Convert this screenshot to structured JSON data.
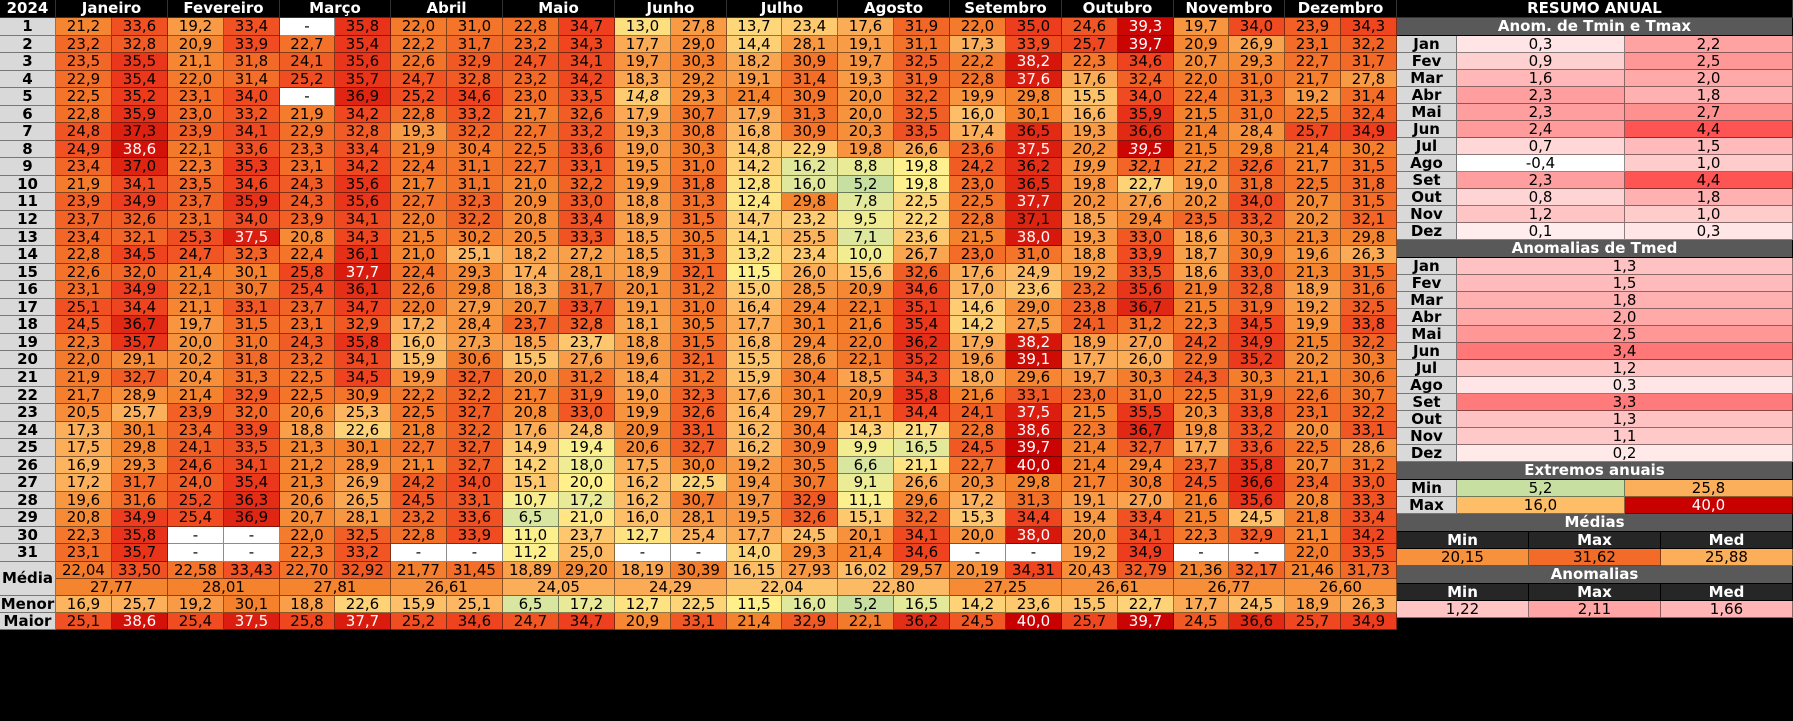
{
  "sheet": {
    "year": "2024",
    "months": [
      "Janeiro",
      "Fevereiro",
      "Março",
      "Abril",
      "Maio",
      "Junho",
      "Julho",
      "Agosto",
      "Setembro",
      "Outubro",
      "Novembro",
      "Dezembro"
    ],
    "day_labels": [
      "1",
      "2",
      "3",
      "4",
      "5",
      "6",
      "7",
      "8",
      "9",
      "10",
      "11",
      "12",
      "13",
      "14",
      "15",
      "16",
      "17",
      "18",
      "19",
      "20",
      "21",
      "22",
      "23",
      "24",
      "25",
      "26",
      "27",
      "28",
      "29",
      "30",
      "31"
    ],
    "days": [
      [
        "21,2",
        "33,6",
        "19,2",
        "33,4",
        "-",
        "35,8",
        "22,0",
        "31,0",
        "22,8",
        "34,7",
        "13,0",
        "27,8",
        "13,7",
        "23,4",
        "17,6",
        "31,9",
        "22,0",
        "35,0",
        "24,6",
        "39,3",
        "19,7",
        "34,0",
        "23,9",
        "34,3"
      ],
      [
        "23,2",
        "32,8",
        "20,9",
        "33,9",
        "22,7",
        "35,4",
        "22,2",
        "31,7",
        "23,2",
        "34,3",
        "17,7",
        "29,0",
        "14,4",
        "28,1",
        "19,1",
        "31,1",
        "17,3",
        "33,9",
        "25,7",
        "39,7",
        "20,9",
        "26,9",
        "23,1",
        "32,2"
      ],
      [
        "23,5",
        "35,5",
        "21,1",
        "31,8",
        "24,1",
        "35,6",
        "22,6",
        "32,9",
        "24,7",
        "34,1",
        "19,7",
        "30,3",
        "18,2",
        "30,9",
        "19,7",
        "32,5",
        "22,2",
        "38,2",
        "22,3",
        "34,6",
        "20,7",
        "29,3",
        "22,7",
        "31,7"
      ],
      [
        "22,9",
        "35,4",
        "22,0",
        "31,4",
        "25,2",
        "35,7",
        "24,7",
        "32,8",
        "23,2",
        "34,2",
        "18,3",
        "29,2",
        "19,1",
        "31,4",
        "19,3",
        "31,9",
        "22,8",
        "37,6",
        "17,6",
        "32,4",
        "22,0",
        "31,0",
        "21,7",
        "27,8"
      ],
      [
        "22,5",
        "35,2",
        "23,1",
        "34,0",
        "-",
        "36,9",
        "25,2",
        "34,6",
        "23,0",
        "33,5",
        "14,8",
        "29,3",
        "21,4",
        "30,9",
        "20,0",
        "32,2",
        "19,9",
        "29,8",
        "15,5",
        "34,0",
        "22,4",
        "31,3",
        "19,2",
        "31,4"
      ],
      [
        "22,8",
        "35,9",
        "23,0",
        "33,2",
        "21,9",
        "34,2",
        "22,8",
        "33,2",
        "21,7",
        "32,6",
        "17,9",
        "30,7",
        "17,9",
        "31,3",
        "20,0",
        "32,5",
        "16,0",
        "30,1",
        "16,6",
        "35,9",
        "21,5",
        "31,0",
        "22,5",
        "32,4"
      ],
      [
        "24,8",
        "37,3",
        "23,9",
        "34,1",
        "22,9",
        "32,8",
        "19,3",
        "32,2",
        "22,7",
        "33,2",
        "19,3",
        "30,8",
        "16,8",
        "30,9",
        "20,3",
        "33,5",
        "17,4",
        "36,5",
        "19,3",
        "36,6",
        "21,4",
        "28,4",
        "25,7",
        "34,9"
      ],
      [
        "24,9",
        "38,6",
        "22,1",
        "33,6",
        "23,3",
        "33,4",
        "21,9",
        "30,4",
        "22,5",
        "33,6",
        "19,0",
        "30,3",
        "14,8",
        "22,9",
        "19,8",
        "26,6",
        "23,6",
        "37,5",
        "20,2",
        "39,5",
        "21,5",
        "29,8",
        "21,4",
        "30,2"
      ],
      [
        "23,4",
        "37,0",
        "22,3",
        "35,3",
        "23,1",
        "34,2",
        "22,4",
        "31,1",
        "22,7",
        "33,1",
        "19,5",
        "31,0",
        "14,2",
        "16,2",
        "8,8",
        "19,8",
        "24,2",
        "36,2",
        "19,9",
        "32,1",
        "21,2",
        "32,6",
        "21,7",
        "31,5"
      ],
      [
        "21,9",
        "34,1",
        "23,5",
        "34,6",
        "24,3",
        "35,6",
        "21,7",
        "31,1",
        "21,0",
        "32,2",
        "19,9",
        "31,8",
        "12,8",
        "16,0",
        "5,2",
        "19,8",
        "23,0",
        "36,5",
        "19,8",
        "22,7",
        "19,0",
        "31,8",
        "22,5",
        "31,8"
      ],
      [
        "23,9",
        "34,9",
        "23,7",
        "35,9",
        "24,3",
        "35,6",
        "22,7",
        "32,3",
        "20,9",
        "33,0",
        "18,8",
        "31,3",
        "12,4",
        "29,8",
        "7,8",
        "22,5",
        "22,5",
        "37,7",
        "20,2",
        "27,6",
        "20,2",
        "34,0",
        "20,7",
        "31,5"
      ],
      [
        "23,7",
        "32,6",
        "23,1",
        "34,0",
        "23,9",
        "34,1",
        "22,0",
        "32,2",
        "20,8",
        "33,4",
        "18,9",
        "31,5",
        "14,7",
        "23,2",
        "9,5",
        "22,2",
        "22,8",
        "37,1",
        "18,5",
        "29,4",
        "23,5",
        "33,2",
        "20,2",
        "32,1"
      ],
      [
        "23,4",
        "32,1",
        "25,3",
        "37,5",
        "20,8",
        "34,3",
        "21,5",
        "30,2",
        "20,5",
        "33,3",
        "18,5",
        "30,5",
        "14,1",
        "25,5",
        "7,1",
        "23,6",
        "21,5",
        "38,0",
        "19,3",
        "33,0",
        "18,6",
        "30,3",
        "21,3",
        "29,8"
      ],
      [
        "22,8",
        "34,5",
        "24,7",
        "32,3",
        "22,4",
        "36,1",
        "21,0",
        "25,1",
        "18,2",
        "27,2",
        "18,5",
        "31,3",
        "13,2",
        "23,4",
        "10,0",
        "26,7",
        "23,0",
        "31,0",
        "18,8",
        "33,9",
        "18,7",
        "30,9",
        "19,6",
        "26,3"
      ],
      [
        "22,6",
        "32,0",
        "21,4",
        "30,1",
        "25,8",
        "37,7",
        "22,4",
        "29,3",
        "17,4",
        "28,1",
        "18,9",
        "32,1",
        "11,5",
        "26,0",
        "15,6",
        "32,6",
        "17,6",
        "24,9",
        "19,2",
        "33,5",
        "18,6",
        "33,0",
        "21,3",
        "31,5"
      ],
      [
        "23,1",
        "34,9",
        "22,1",
        "30,7",
        "25,4",
        "36,1",
        "22,6",
        "29,8",
        "18,3",
        "31,7",
        "20,1",
        "31,2",
        "15,0",
        "28,5",
        "20,9",
        "34,6",
        "17,0",
        "23,6",
        "23,2",
        "35,6",
        "21,9",
        "32,8",
        "18,9",
        "31,6"
      ],
      [
        "25,1",
        "34,4",
        "21,1",
        "33,1",
        "23,7",
        "34,7",
        "22,0",
        "27,9",
        "20,7",
        "33,7",
        "19,1",
        "31,0",
        "16,4",
        "29,4",
        "22,1",
        "35,1",
        "14,6",
        "29,0",
        "23,8",
        "36,7",
        "21,5",
        "31,9",
        "19,2",
        "32,5"
      ],
      [
        "24,5",
        "36,7",
        "19,7",
        "31,5",
        "23,1",
        "32,9",
        "17,2",
        "28,4",
        "23,7",
        "32,8",
        "18,1",
        "30,5",
        "17,7",
        "30,1",
        "21,6",
        "35,4",
        "14,2",
        "27,5",
        "24,1",
        "31,2",
        "22,3",
        "34,5",
        "19,9",
        "33,8"
      ],
      [
        "22,3",
        "35,7",
        "20,0",
        "31,0",
        "24,3",
        "35,8",
        "16,0",
        "27,3",
        "18,5",
        "23,7",
        "18,8",
        "31,5",
        "16,8",
        "29,4",
        "22,0",
        "36,2",
        "17,9",
        "38,2",
        "18,9",
        "27,0",
        "24,2",
        "34,9",
        "21,5",
        "32,2"
      ],
      [
        "22,0",
        "29,1",
        "20,2",
        "31,8",
        "23,2",
        "34,1",
        "15,9",
        "30,6",
        "15,5",
        "27,6",
        "19,6",
        "32,1",
        "15,5",
        "28,6",
        "22,1",
        "35,2",
        "19,6",
        "39,1",
        "17,7",
        "26,0",
        "22,9",
        "35,2",
        "20,2",
        "30,3"
      ],
      [
        "21,9",
        "32,7",
        "20,4",
        "31,3",
        "22,5",
        "34,5",
        "19,9",
        "32,7",
        "20,0",
        "31,2",
        "18,4",
        "31,2",
        "15,9",
        "30,4",
        "18,5",
        "34,3",
        "18,0",
        "29,6",
        "19,7",
        "30,3",
        "24,3",
        "30,3",
        "21,1",
        "30,6"
      ],
      [
        "21,7",
        "28,9",
        "21,4",
        "32,9",
        "22,5",
        "30,9",
        "22,2",
        "32,2",
        "21,7",
        "31,9",
        "19,0",
        "32,3",
        "17,6",
        "30,1",
        "20,9",
        "35,8",
        "21,6",
        "33,1",
        "23,0",
        "31,0",
        "22,5",
        "31,9",
        "22,6",
        "30,7"
      ],
      [
        "20,5",
        "25,7",
        "23,9",
        "32,0",
        "20,6",
        "25,3",
        "22,5",
        "32,7",
        "20,8",
        "33,0",
        "19,9",
        "32,6",
        "16,4",
        "29,7",
        "21,1",
        "34,4",
        "24,1",
        "37,5",
        "21,5",
        "35,5",
        "20,3",
        "33,8",
        "23,1",
        "32,2"
      ],
      [
        "17,3",
        "30,1",
        "23,4",
        "33,9",
        "18,8",
        "22,6",
        "21,8",
        "32,2",
        "17,6",
        "24,8",
        "20,9",
        "33,1",
        "16,2",
        "30,4",
        "14,3",
        "21,7",
        "22,8",
        "38,6",
        "22,3",
        "36,7",
        "19,8",
        "33,2",
        "20,0",
        "33,1"
      ],
      [
        "17,5",
        "29,8",
        "24,1",
        "33,5",
        "21,3",
        "30,1",
        "22,7",
        "32,7",
        "14,9",
        "19,4",
        "20,6",
        "32,7",
        "16,2",
        "30,9",
        "9,9",
        "16,5",
        "24,5",
        "39,7",
        "21,4",
        "32,7",
        "17,7",
        "33,6",
        "22,5",
        "28,6"
      ],
      [
        "16,9",
        "29,3",
        "24,6",
        "34,1",
        "21,2",
        "28,9",
        "21,1",
        "32,7",
        "14,2",
        "18,0",
        "17,5",
        "30,0",
        "19,2",
        "30,5",
        "6,6",
        "21,1",
        "22,7",
        "40,0",
        "21,4",
        "29,4",
        "23,7",
        "35,8",
        "20,7",
        "31,2"
      ],
      [
        "17,2",
        "31,7",
        "24,0",
        "35,4",
        "21,3",
        "26,9",
        "24,2",
        "34,0",
        "15,1",
        "20,0",
        "16,2",
        "22,5",
        "19,4",
        "30,7",
        "9,1",
        "26,6",
        "20,3",
        "29,8",
        "21,7",
        "30,8",
        "24,5",
        "36,6",
        "23,4",
        "33,0"
      ],
      [
        "19,6",
        "31,6",
        "25,2",
        "36,3",
        "20,6",
        "26,5",
        "24,5",
        "33,1",
        "10,7",
        "17,2",
        "16,2",
        "30,7",
        "19,7",
        "32,9",
        "11,1",
        "29,6",
        "17,2",
        "31,3",
        "19,1",
        "27,0",
        "21,6",
        "35,6",
        "20,8",
        "33,3"
      ],
      [
        "20,8",
        "34,9",
        "25,4",
        "36,9",
        "20,7",
        "28,1",
        "23,2",
        "33,6",
        "6,5",
        "21,0",
        "16,0",
        "28,1",
        "19,5",
        "32,6",
        "15,1",
        "32,2",
        "15,3",
        "34,4",
        "19,4",
        "33,4",
        "21,5",
        "24,5",
        "21,8",
        "33,4"
      ],
      [
        "22,3",
        "35,8",
        "-",
        "-",
        "22,0",
        "32,5",
        "22,8",
        "33,9",
        "11,0",
        "23,7",
        "12,7",
        "25,4",
        "17,7",
        "24,5",
        "20,1",
        "34,1",
        "20,0",
        "38,0",
        "20,0",
        "34,1",
        "22,3",
        "32,9",
        "21,1",
        "34,2"
      ],
      [
        "23,1",
        "35,7",
        "-",
        "-",
        "22,3",
        "33,2",
        "-",
        "-",
        "11,2",
        "25,0",
        "-",
        "-",
        "14,0",
        "29,3",
        "21,4",
        "34,6",
        "-",
        "-",
        "19,2",
        "34,9",
        "-",
        "-",
        "22,0",
        "33,5"
      ]
    ],
    "media_label": "Média",
    "media_pairs": [
      "22,04",
      "33,50",
      "22,58",
      "33,43",
      "22,70",
      "32,92",
      "21,77",
      "31,45",
      "18,89",
      "29,20",
      "18,19",
      "30,39",
      "16,15",
      "27,93",
      "16,02",
      "29,57",
      "20,19",
      "34,31",
      "20,43",
      "32,79",
      "21,36",
      "32,17",
      "21,46",
      "31,73"
    ],
    "media_mean": [
      "27,77",
      "28,01",
      "27,81",
      "26,61",
      "24,05",
      "24,29",
      "22,04",
      "22,80",
      "27,25",
      "26,61",
      "26,77",
      "26,60"
    ],
    "menor_label": "Menor",
    "menor": [
      "16,9",
      "25,7",
      "19,2",
      "30,1",
      "18,8",
      "22,6",
      "15,9",
      "25,1",
      "6,5",
      "17,2",
      "12,7",
      "22,5",
      "11,5",
      "16,0",
      "5,2",
      "16,5",
      "14,2",
      "23,6",
      "15,5",
      "22,7",
      "17,7",
      "24,5",
      "18,9",
      "26,3"
    ],
    "maior_label": "Maior",
    "maior": [
      "25,1",
      "38,6",
      "25,4",
      "37,5",
      "25,8",
      "37,7",
      "25,2",
      "34,6",
      "24,7",
      "34,7",
      "20,9",
      "33,1",
      "21,4",
      "32,9",
      "22,1",
      "36,2",
      "24,5",
      "40,0",
      "25,7",
      "39,7",
      "24,5",
      "36,6",
      "25,7",
      "34,9"
    ]
  },
  "resumo": {
    "title": "RESUMO ANUAL",
    "anom_title": "Anom. de Tmin e Tmax",
    "month_abbr": [
      "Jan",
      "Fev",
      "Mar",
      "Abr",
      "Mai",
      "Jun",
      "Jul",
      "Ago",
      "Set",
      "Out",
      "Nov",
      "Dez"
    ],
    "anom_tmin": [
      "0,3",
      "0,9",
      "1,6",
      "2,3",
      "2,3",
      "2,4",
      "0,7",
      "-0,4",
      "2,3",
      "0,8",
      "1,2",
      "0,1"
    ],
    "anom_tmax": [
      "2,2",
      "2,5",
      "2,0",
      "1,8",
      "2,7",
      "4,4",
      "1,5",
      "1,0",
      "4,4",
      "1,8",
      "1,0",
      "0,3"
    ],
    "tmed_title": "Anomalias de Tmed",
    "anom_tmed": [
      "1,3",
      "1,5",
      "1,8",
      "2,0",
      "2,5",
      "3,4",
      "1,2",
      "0,3",
      "3,3",
      "1,3",
      "1,1",
      "0,2"
    ],
    "extremos_title": "Extremos anuais",
    "ext_rows": [
      {
        "label": "Min",
        "a": "5,2",
        "b": "25,8"
      },
      {
        "label": "Max",
        "a": "16,0",
        "b": "40,0"
      }
    ],
    "medias_title": "Médias",
    "col_heads": [
      "Min",
      "Max",
      "Med"
    ],
    "medias": [
      "20,15",
      "31,62",
      "25,88"
    ],
    "anomalias_title": "Anomalias",
    "anomalias": [
      "1,22",
      "2,11",
      "1,66"
    ]
  },
  "colors": {
    "header_bg": "#000000",
    "group_bg": "#595959",
    "label_bg": "#d9d9d9",
    "blank": "#ffffff"
  },
  "italic_cells": [
    "4:10",
    "7:18",
    "7:19",
    "8:18",
    "8:19",
    "8:20",
    "8:21"
  ]
}
